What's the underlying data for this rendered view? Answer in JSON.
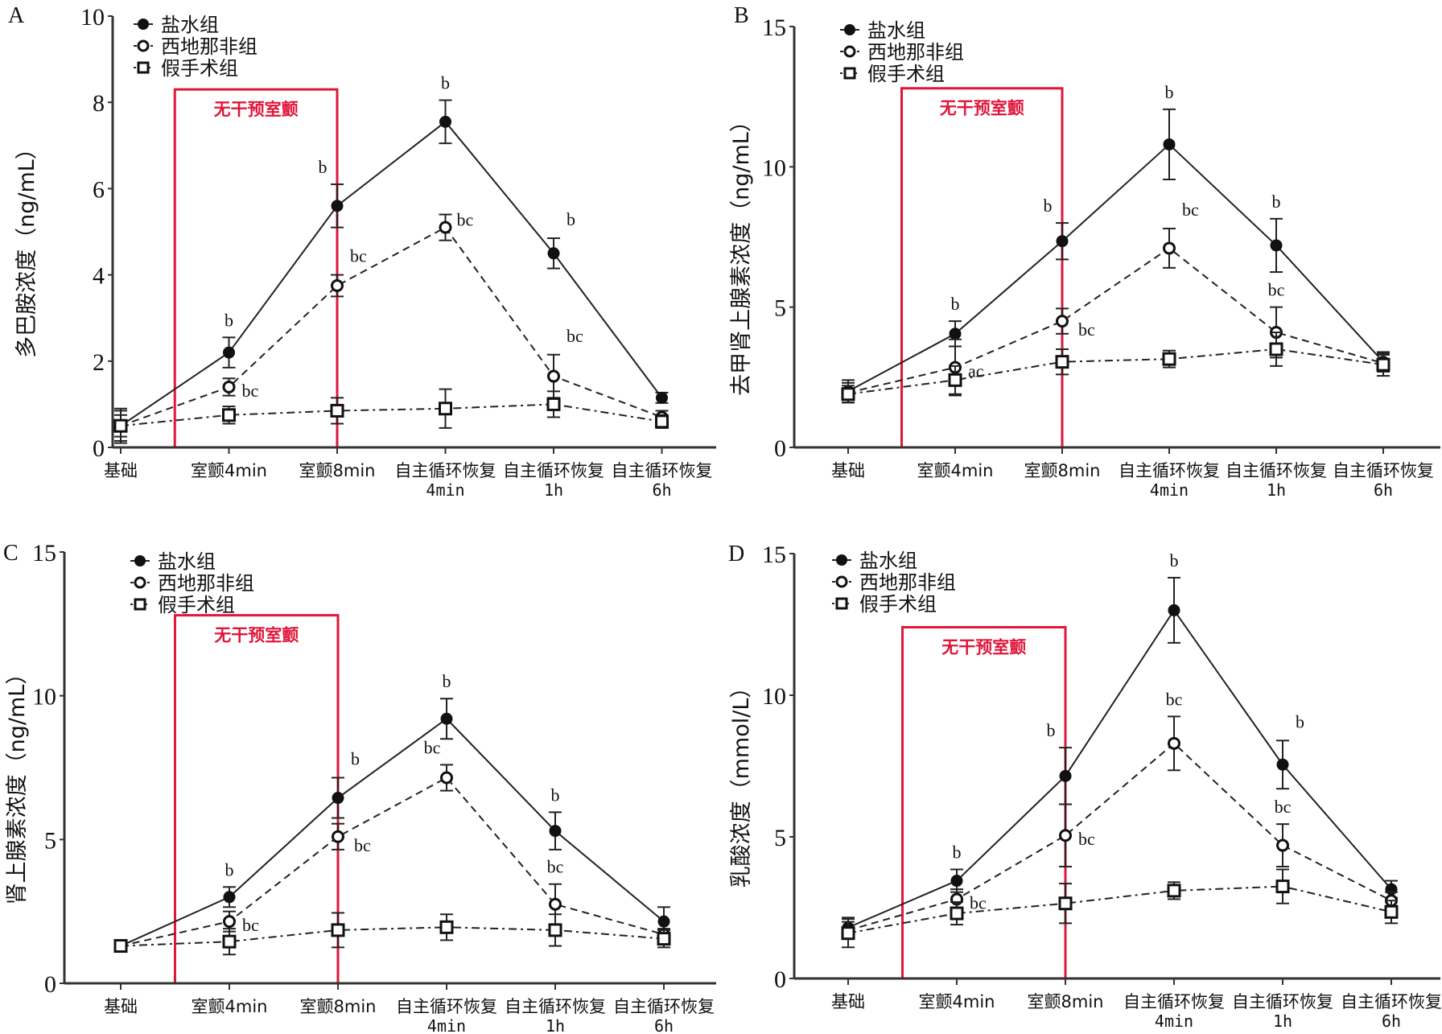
{
  "colors": {
    "accent_red": "#e0163a",
    "ink": "#111111"
  },
  "legend": [
    {
      "label": "盐水组",
      "marker": "filled-circle",
      "dash": "solid"
    },
    {
      "label": "西地那非组",
      "marker": "open-circle",
      "dash": "dashed"
    },
    {
      "label": "假手术组",
      "marker": "open-square",
      "dash": "dash-dot"
    }
  ],
  "intervention_box_label": "无干预室颤",
  "chart_data": [
    {
      "panel": "A",
      "type": "line",
      "ylabel": "多巴胺浓度（ng/mL）",
      "ylim": [
        0,
        10
      ],
      "yticks": [
        "0",
        "2",
        "4",
        "6",
        "8",
        "10"
      ],
      "categories": [
        [
          "基础"
        ],
        [
          "室颤4min"
        ],
        [
          "室颤8min"
        ],
        [
          "自主循环恢复",
          "4min"
        ],
        [
          "自主循环恢复",
          "1h"
        ],
        [
          "自主循环恢复",
          "6h"
        ]
      ],
      "series": [
        {
          "name": "盐水组",
          "values": [
            0.5,
            2.2,
            5.6,
            7.55,
            4.5,
            1.15
          ],
          "err": [
            0.4,
            0.35,
            0.5,
            0.5,
            0.35,
            0.12
          ]
        },
        {
          "name": "西地那非组",
          "values": [
            0.5,
            1.4,
            3.75,
            5.1,
            1.65,
            0.7
          ],
          "err": [
            0.35,
            0.2,
            0.25,
            0.3,
            0.5,
            0.15
          ]
        },
        {
          "name": "假手术组",
          "values": [
            0.5,
            0.75,
            0.85,
            0.9,
            1.0,
            0.6
          ],
          "err": [
            0.25,
            0.2,
            0.3,
            0.45,
            0.3,
            0.15
          ]
        }
      ],
      "annotations": [
        {
          "series": 0,
          "index": 1,
          "text": "b",
          "pos": "above"
        },
        {
          "series": 1,
          "index": 1,
          "text": "bc",
          "pos": "right"
        },
        {
          "series": 0,
          "index": 2,
          "text": "b",
          "pos": "above-left"
        },
        {
          "series": 1,
          "index": 2,
          "text": "bc",
          "pos": "above-right"
        },
        {
          "series": 0,
          "index": 3,
          "text": "b",
          "pos": "above"
        },
        {
          "series": 1,
          "index": 3,
          "text": "bc",
          "pos": "right-up"
        },
        {
          "series": 0,
          "index": 4,
          "text": "b",
          "pos": "above-right"
        },
        {
          "series": 1,
          "index": 4,
          "text": "bc",
          "pos": "above-right"
        }
      ],
      "box": {
        "from": 0.5,
        "to": 2,
        "top": 8.3
      }
    },
    {
      "panel": "B",
      "type": "line",
      "ylabel": "去甲肾上腺素浓度（ng/mL）",
      "ylim": [
        0,
        15
      ],
      "yticks": [
        "0",
        "5",
        "10",
        "15"
      ],
      "categories": [
        [
          "基础"
        ],
        [
          "室颤4min"
        ],
        [
          "室颤8min"
        ],
        [
          "自主循环恢复",
          "4min"
        ],
        [
          "自主循环恢复",
          "1h"
        ],
        [
          "自主循环恢复",
          "6h"
        ]
      ],
      "series": [
        {
          "name": "盐水组",
          "values": [
            2.0,
            4.05,
            7.35,
            10.8,
            7.2,
            3.05
          ],
          "err": [
            0.4,
            0.45,
            0.65,
            1.25,
            0.95,
            0.35
          ]
        },
        {
          "name": "西地那非组",
          "values": [
            1.95,
            2.85,
            4.5,
            7.1,
            4.1,
            3.0
          ],
          "err": [
            0.35,
            1.0,
            0.45,
            0.7,
            0.9,
            0.3
          ]
        },
        {
          "name": "假手术组",
          "values": [
            1.9,
            2.4,
            3.05,
            3.15,
            3.5,
            2.95
          ],
          "err": [
            0.3,
            0.5,
            0.45,
            0.3,
            0.6,
            0.4
          ]
        }
      ],
      "annotations": [
        {
          "series": 0,
          "index": 1,
          "text": "b",
          "pos": "above"
        },
        {
          "series": 1,
          "index": 1,
          "text": "ac",
          "pos": "right"
        },
        {
          "series": 0,
          "index": 2,
          "text": "b",
          "pos": "above-left"
        },
        {
          "series": 1,
          "index": 2,
          "text": "bc",
          "pos": "right-down"
        },
        {
          "series": 0,
          "index": 3,
          "text": "b",
          "pos": "above"
        },
        {
          "series": 1,
          "index": 3,
          "text": "bc",
          "pos": "above-right"
        },
        {
          "series": 0,
          "index": 4,
          "text": "b",
          "pos": "above"
        },
        {
          "series": 1,
          "index": 4,
          "text": "bc",
          "pos": "above"
        }
      ],
      "box": {
        "from": 0.5,
        "to": 2,
        "top": 12.8
      }
    },
    {
      "panel": "C",
      "type": "line",
      "ylabel": "肾上腺素浓度（ng/mL）",
      "ylim": [
        0,
        15
      ],
      "yticks": [
        "0",
        "5",
        "10",
        "15"
      ],
      "categories": [
        [
          "基础"
        ],
        [
          "室颤4min"
        ],
        [
          "室颤8min"
        ],
        [
          "自主循环恢复",
          "4min"
        ],
        [
          "自主循环恢复",
          "1h"
        ],
        [
          "自主循环恢复",
          "6h"
        ]
      ],
      "series": [
        {
          "name": "盐水组",
          "values": [
            1.3,
            3.0,
            6.45,
            9.2,
            5.3,
            2.15
          ],
          "err": [
            0.15,
            0.35,
            0.7,
            0.7,
            0.65,
            0.5
          ]
        },
        {
          "name": "西地那非组",
          "values": [
            1.3,
            2.15,
            5.1,
            7.15,
            2.75,
            1.7
          ],
          "err": [
            0.15,
            0.35,
            0.45,
            0.45,
            0.7,
            0.2
          ]
        },
        {
          "name": "假手术组",
          "values": [
            1.3,
            1.45,
            1.85,
            1.95,
            1.85,
            1.55
          ],
          "err": [
            0.15,
            0.45,
            0.6,
            0.45,
            0.55,
            0.3
          ]
        }
      ],
      "annotations": [
        {
          "series": 0,
          "index": 1,
          "text": "b",
          "pos": "above"
        },
        {
          "series": 1,
          "index": 1,
          "text": "bc",
          "pos": "right"
        },
        {
          "series": 0,
          "index": 2,
          "text": "b",
          "pos": "above-right"
        },
        {
          "series": 1,
          "index": 2,
          "text": "bc",
          "pos": "right-down"
        },
        {
          "series": 0,
          "index": 3,
          "text": "b",
          "pos": "above"
        },
        {
          "series": 1,
          "index": 3,
          "text": "bc",
          "pos": "above-left"
        },
        {
          "series": 0,
          "index": 4,
          "text": "b",
          "pos": "above"
        },
        {
          "series": 1,
          "index": 4,
          "text": "bc",
          "pos": "above"
        }
      ],
      "box": {
        "from": 0.5,
        "to": 2,
        "top": 12.8
      }
    },
    {
      "panel": "D",
      "type": "line",
      "ylabel": "乳酸浓度（mmol/L）",
      "ylim": [
        0,
        15
      ],
      "yticks": [
        "0",
        "5",
        "10",
        "15"
      ],
      "categories": [
        [
          "基础"
        ],
        [
          "室颤4min"
        ],
        [
          "室颤8min"
        ],
        [
          "自主循环恢复",
          "4min"
        ],
        [
          "自主循环恢复",
          "1h"
        ],
        [
          "自主循环恢复",
          "6h"
        ]
      ],
      "series": [
        {
          "name": "盐水组",
          "values": [
            1.8,
            3.45,
            7.15,
            13.0,
            7.55,
            3.15
          ],
          "err": [
            0.35,
            0.4,
            1.0,
            1.15,
            0.85,
            0.3
          ]
        },
        {
          "name": "西地那非组",
          "values": [
            1.7,
            2.8,
            5.05,
            8.3,
            4.7,
            2.75
          ],
          "err": [
            0.3,
            0.35,
            1.1,
            0.95,
            0.75,
            0.3
          ]
        },
        {
          "name": "假手术组",
          "values": [
            1.6,
            2.3,
            2.65,
            3.1,
            3.25,
            2.35
          ],
          "err": [
            0.5,
            0.4,
            0.7,
            0.3,
            0.6,
            0.4
          ]
        }
      ],
      "annotations": [
        {
          "series": 0,
          "index": 1,
          "text": "b",
          "pos": "above"
        },
        {
          "series": 1,
          "index": 1,
          "text": "bc",
          "pos": "right"
        },
        {
          "series": 0,
          "index": 2,
          "text": "b",
          "pos": "above-left"
        },
        {
          "series": 1,
          "index": 2,
          "text": "bc",
          "pos": "right"
        },
        {
          "series": 0,
          "index": 3,
          "text": "b",
          "pos": "above"
        },
        {
          "series": 1,
          "index": 3,
          "text": "bc",
          "pos": "above"
        },
        {
          "series": 0,
          "index": 4,
          "text": "b",
          "pos": "above-right"
        },
        {
          "series": 1,
          "index": 4,
          "text": "bc",
          "pos": "above"
        }
      ],
      "box": {
        "from": 0.5,
        "to": 2,
        "top": 12.4
      }
    }
  ]
}
